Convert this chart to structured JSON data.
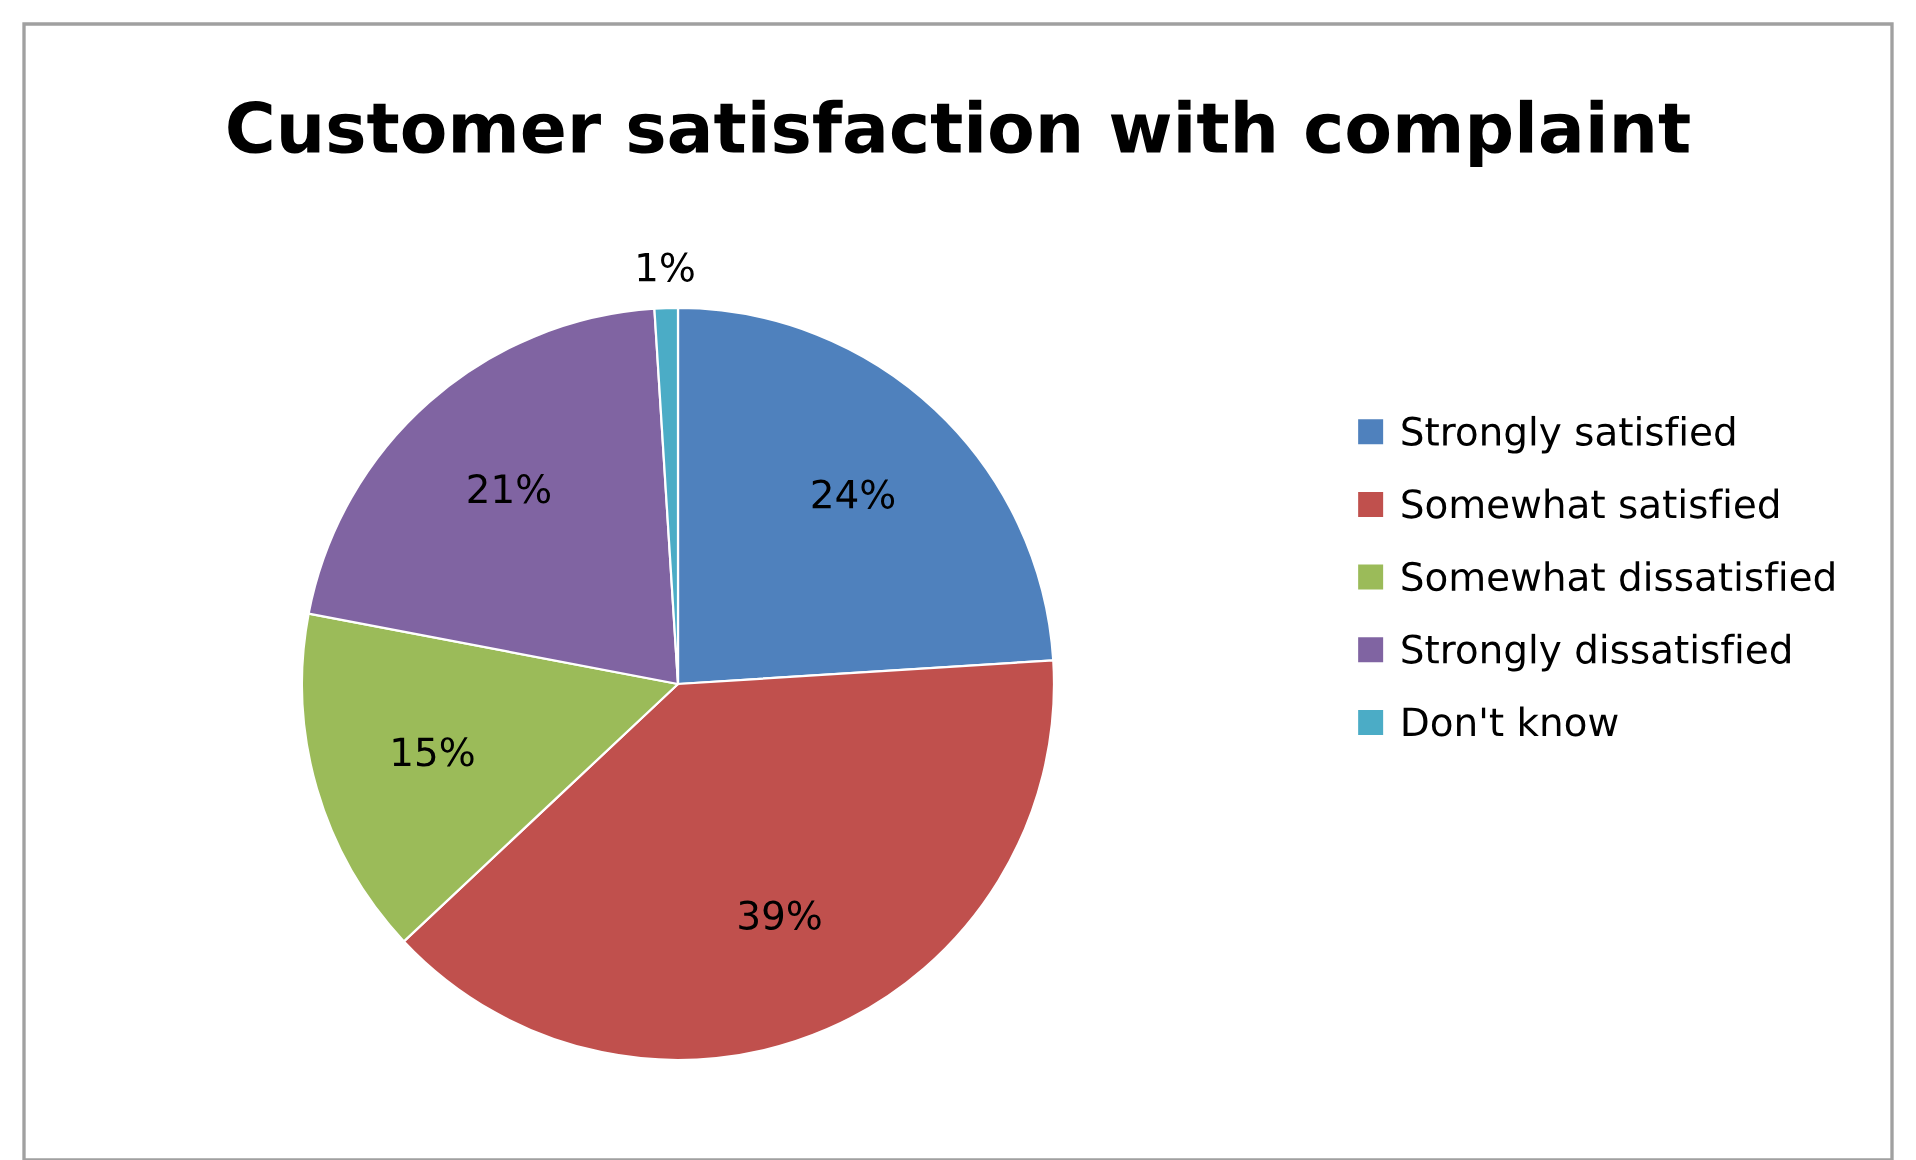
{
  "chart_data": {
    "type": "pie",
    "title": "Customer satisfaction with complaint",
    "categories": [
      "Strongly satisfied",
      "Somewhat satisfied",
      "Somewhat dissatisfied",
      "Strongly dissatisfied",
      "Don't know"
    ],
    "values": [
      24,
      39,
      15,
      21,
      1
    ],
    "colors": [
      "#4f81bd",
      "#c0504d",
      "#9bbb59",
      "#8064a2",
      "#4bacc6"
    ],
    "value_labels": [
      "24%",
      "39%",
      "15%",
      "21%",
      "1%"
    ],
    "legend": "right"
  }
}
